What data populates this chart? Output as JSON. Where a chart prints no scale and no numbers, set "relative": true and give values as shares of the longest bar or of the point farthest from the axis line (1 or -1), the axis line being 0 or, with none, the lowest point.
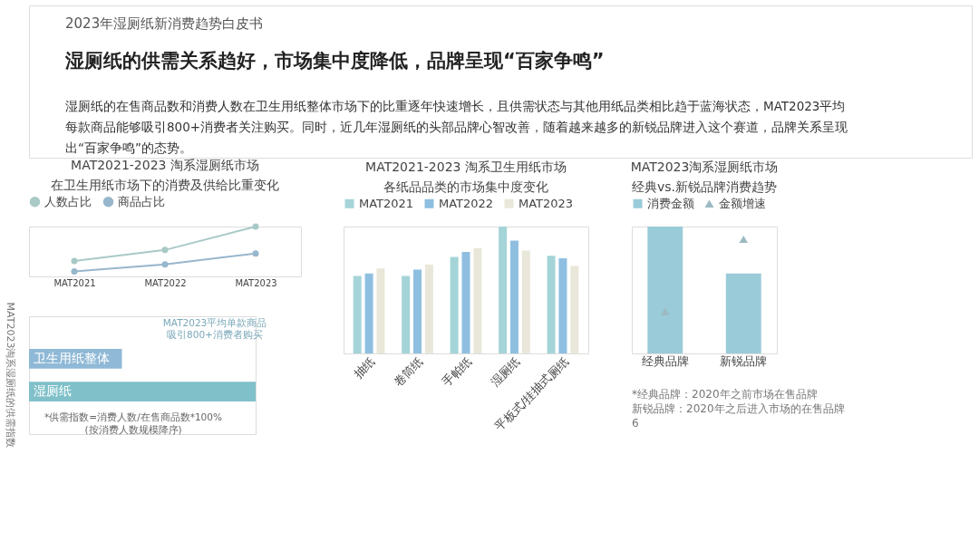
{
  "chart_data": [
    {
      "type": "other",
      "title": "湿厕纸的供需关系趋好，市场集中度降低，品牌呈现“百家争鸣”",
      "annotations": [
        "2023年湿厕纸新消费趋势白皮书",
        "湿厕纸的在售商品数和消费人数在卫生用纸整体市场下的比重逐年快速增长，且供需状态与其他用纸品类相比趋于蓝海状态，MAT2023平均",
        "每款商品能够吸引800+消费者关注购买。同时，近几年湿厕纸的头部品牌心智改善，随着越来越多的新锐品牌进入这个赛道，品牌关系呈现",
        "出“百家争鸣”的态势。"
      ]
    },
    {
      "type": "line",
      "title": "MAT2021-2023 淘系湿厕纸市场",
      "subtitle": "在卫生用纸市场下的消费及供给比重变化",
      "categories": [
        "MAT2021",
        "MAT2022",
        "MAT2023"
      ],
      "relative": true,
      "legend": "top",
      "marker": "circle",
      "series": [
        {
          "name": "人数占比",
          "color": "#a9c9c7",
          "values": [
            0.31,
            0.53,
            1.0
          ]
        },
        {
          "name": "商品占比",
          "color": "#98b6cc",
          "values": [
            0.1,
            0.24,
            0.46
          ]
        }
      ]
    },
    {
      "type": "bar",
      "orientation": "horizontal",
      "title": "MAT2023淘系湿厕纸的供需指数",
      "categories": [
        "卫生用纸整体",
        "湿厕纸"
      ],
      "relative": true,
      "values": [
        0.41,
        1.0
      ],
      "colors": [
        "#8fb9d6",
        "#7fc0c9"
      ],
      "annotations": [
        "MAT2023平均单款商品吸引800+消费者购买",
        "*供需指数=消费人数/在售商品数*100%",
        "(按消费人数规模降序)"
      ]
    },
    {
      "type": "bar",
      "title": "MAT2021-2023 淘系卫生用纸市场",
      "subtitle": "各纸品品类的市场集中度变化",
      "categories": [
        "抽纸",
        "卷筒纸",
        "手帕纸",
        "湿厕纸",
        "平板式/挂抽式厕纸"
      ],
      "relative": true,
      "legend": "top",
      "series": [
        {
          "name": "MAT2021",
          "color": "#a5d4d8",
          "values": [
            0.61,
            0.61,
            0.76,
            1.0,
            0.77
          ]
        },
        {
          "name": "MAT2022",
          "color": "#8fbfe0",
          "values": [
            0.63,
            0.66,
            0.8,
            0.89,
            0.75
          ]
        },
        {
          "name": "MAT2023",
          "color": "#e9e7d9",
          "values": [
            0.67,
            0.7,
            0.83,
            0.81,
            0.69
          ]
        }
      ]
    },
    {
      "type": "bar",
      "title": "MAT2023淘系湿厕纸市场",
      "subtitle": "经典vs.新锐品牌消费趋势",
      "categories": [
        "经典品牌",
        "新锐品牌"
      ],
      "relative": true,
      "legend": "top",
      "series": [
        {
          "name": "消费金额",
          "color": "#9acbd8",
          "values": [
            1.0,
            0.63
          ]
        },
        {
          "name": "金额增速",
          "type": "scatter",
          "marker": "triangle",
          "color": "#9db9c2",
          "values": [
            0.33,
            0.9
          ]
        }
      ],
      "annotations": [
        "*经典品牌：2020年之前市场在售品牌",
        "新锐品牌：2020年之后进入市场的在售品牌",
        "6"
      ]
    }
  ]
}
